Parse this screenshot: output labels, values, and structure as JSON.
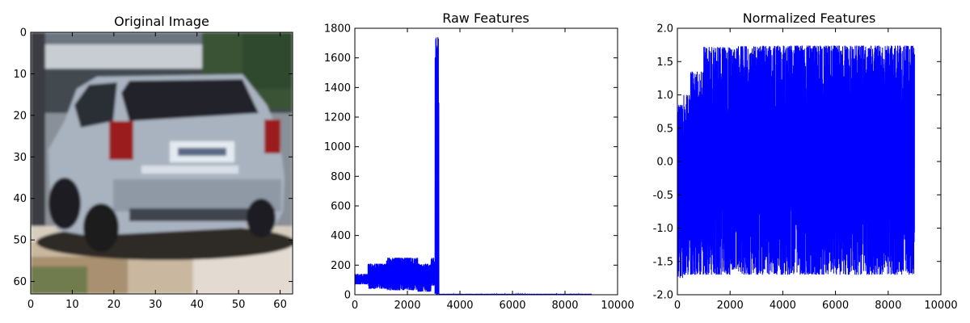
{
  "chart_data": [
    {
      "type": "image",
      "title": "Original Image",
      "image_description": "Low-resolution (64x64) photo of a silver SUV seen from the rear, parked on a sunlit street with a building and foliage in the background.",
      "xlim": [
        0,
        63
      ],
      "ylim": [
        63,
        0
      ],
      "xticks": [
        0,
        10,
        20,
        30,
        40,
        50,
        60
      ],
      "yticks": [
        0,
        10,
        20,
        30,
        40,
        50,
        60
      ],
      "xlabel": "",
      "ylabel": ""
    },
    {
      "type": "line",
      "title": "Raw Features",
      "color": "#0000ff",
      "xlim": [
        0,
        10000
      ],
      "ylim": [
        0,
        1800
      ],
      "xticks": [
        0,
        2000,
        4000,
        6000,
        8000,
        10000
      ],
      "yticks": [
        0,
        200,
        400,
        600,
        800,
        1000,
        1200,
        1400,
        1600,
        1800
      ],
      "xlabel": "",
      "ylabel": "",
      "n_points": 9000,
      "segments": [
        {
          "x_start": 0,
          "x_end": 500,
          "low": 70,
          "high": 140
        },
        {
          "x_start": 500,
          "x_end": 1200,
          "low": 40,
          "high": 210
        },
        {
          "x_start": 1200,
          "x_end": 2400,
          "low": 30,
          "high": 250
        },
        {
          "x_start": 2400,
          "x_end": 2900,
          "low": 20,
          "high": 210
        },
        {
          "x_start": 2900,
          "x_end": 3050,
          "low": 60,
          "high": 250
        },
        {
          "x_start": 3050,
          "x_end": 3200,
          "low": 5,
          "high": 1740
        },
        {
          "x_start": 3200,
          "x_end": 9000,
          "low": 0,
          "high": 6
        }
      ],
      "peaks": [
        {
          "x": 3100,
          "y": 530
        },
        {
          "x": 3130,
          "y": 1620
        },
        {
          "x": 3160,
          "y": 1740
        }
      ]
    },
    {
      "type": "line",
      "title": "Normalized Features",
      "color": "#0000ff",
      "xlim": [
        0,
        10000
      ],
      "ylim": [
        -2.0,
        2.0
      ],
      "xticks": [
        0,
        2000,
        4000,
        6000,
        8000,
        10000
      ],
      "yticks": [
        -2.0,
        -1.5,
        -1.0,
        -0.5,
        0.0,
        0.5,
        1.0,
        1.5,
        2.0
      ],
      "xlabel": "",
      "ylabel": "",
      "n_points": 9000,
      "segments": [
        {
          "x_start": 0,
          "x_end": 200,
          "low": -1.75,
          "high": 0.85
        },
        {
          "x_start": 200,
          "x_end": 500,
          "low": -1.7,
          "high": 1.0
        },
        {
          "x_start": 500,
          "x_end": 1000,
          "low": -1.7,
          "high": 1.35
        },
        {
          "x_start": 1000,
          "x_end": 2000,
          "low": -1.7,
          "high": 1.72
        },
        {
          "x_start": 2000,
          "x_end": 2300,
          "low": -1.65,
          "high": 1.7
        },
        {
          "x_start": 2300,
          "x_end": 3200,
          "low": -1.7,
          "high": 1.73
        },
        {
          "x_start": 3200,
          "x_end": 9000,
          "low": -1.7,
          "high": 1.74
        }
      ]
    }
  ]
}
